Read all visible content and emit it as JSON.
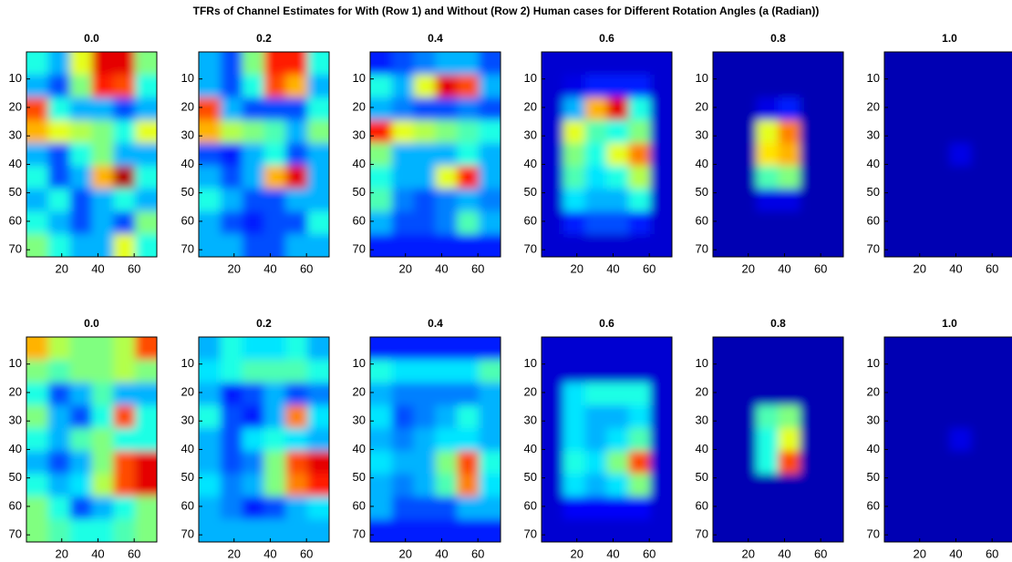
{
  "title": "TFRs of Channel Estimates for With (Row 1) and Without (Row 2) Human cases for Different Rotation Angles (a (Radian))",
  "chart_data": [
    {
      "type": "heatmap",
      "title": "0.0",
      "colormap": "jet",
      "clim": [
        0,
        1
      ],
      "xlim": [
        0.5,
        72.5
      ],
      "ylim": [
        72.5,
        0.5
      ],
      "xticks": [
        20,
        40,
        60
      ],
      "yticks": [
        10,
        20,
        30,
        40,
        50,
        60,
        70
      ],
      "z": [
        [
          0.4,
          0.3,
          0.6,
          0.9,
          0.9,
          0.5
        ],
        [
          0.3,
          0.2,
          0.5,
          0.85,
          0.8,
          0.4
        ],
        [
          0.8,
          0.4,
          0.3,
          0.3,
          0.2,
          0.3
        ],
        [
          0.7,
          0.6,
          0.55,
          0.5,
          0.4,
          0.6
        ],
        [
          0.3,
          0.2,
          0.4,
          0.5,
          0.3,
          0.3
        ],
        [
          0.4,
          0.2,
          0.3,
          0.7,
          0.95,
          0.4
        ],
        [
          0.3,
          0.4,
          0.2,
          0.3,
          0.4,
          0.3
        ],
        [
          0.4,
          0.3,
          0.2,
          0.3,
          0.2,
          0.5
        ],
        [
          0.5,
          0.4,
          0.3,
          0.3,
          0.6,
          0.4
        ]
      ]
    },
    {
      "type": "heatmap",
      "title": "0.2",
      "colormap": "jet",
      "clim": [
        0,
        1
      ],
      "xlim": [
        0.5,
        72.5
      ],
      "ylim": [
        72.5,
        0.5
      ],
      "xticks": [
        20,
        40,
        60
      ],
      "yticks": [
        10,
        20,
        30,
        40,
        50,
        60,
        70
      ],
      "z": [
        [
          0.3,
          0.2,
          0.5,
          0.85,
          0.85,
          0.4
        ],
        [
          0.3,
          0.2,
          0.4,
          0.8,
          0.7,
          0.3
        ],
        [
          0.8,
          0.3,
          0.2,
          0.2,
          0.2,
          0.4
        ],
        [
          0.7,
          0.55,
          0.5,
          0.45,
          0.3,
          0.5
        ],
        [
          0.2,
          0.15,
          0.3,
          0.4,
          0.2,
          0.3
        ],
        [
          0.3,
          0.2,
          0.3,
          0.7,
          0.9,
          0.3
        ],
        [
          0.4,
          0.3,
          0.2,
          0.2,
          0.3,
          0.3
        ],
        [
          0.3,
          0.2,
          0.15,
          0.2,
          0.2,
          0.4
        ],
        [
          0.3,
          0.3,
          0.2,
          0.2,
          0.3,
          0.3
        ]
      ]
    },
    {
      "type": "heatmap",
      "title": "0.4",
      "colormap": "jet",
      "clim": [
        0,
        1
      ],
      "xlim": [
        0.5,
        72.5
      ],
      "ylim": [
        72.5,
        0.5
      ],
      "xticks": [
        20,
        40,
        60
      ],
      "yticks": [
        10,
        20,
        30,
        40,
        50,
        60,
        70
      ],
      "z": [
        [
          0.15,
          0.2,
          0.25,
          0.3,
          0.3,
          0.2
        ],
        [
          0.4,
          0.3,
          0.6,
          0.9,
          0.8,
          0.3
        ],
        [
          0.3,
          0.25,
          0.2,
          0.2,
          0.25,
          0.2
        ],
        [
          0.85,
          0.6,
          0.55,
          0.5,
          0.45,
          0.4
        ],
        [
          0.5,
          0.3,
          0.3,
          0.3,
          0.4,
          0.3
        ],
        [
          0.4,
          0.3,
          0.3,
          0.6,
          0.85,
          0.3
        ],
        [
          0.45,
          0.25,
          0.2,
          0.25,
          0.3,
          0.25
        ],
        [
          0.3,
          0.2,
          0.2,
          0.25,
          0.45,
          0.3
        ],
        [
          0.15,
          0.15,
          0.15,
          0.15,
          0.15,
          0.15
        ]
      ]
    },
    {
      "type": "heatmap",
      "title": "0.6",
      "colormap": "jet",
      "clim": [
        0,
        1
      ],
      "xlim": [
        0.5,
        72.5
      ],
      "ylim": [
        72.5,
        0.5
      ],
      "xticks": [
        20,
        40,
        60
      ],
      "yticks": [
        10,
        20,
        30,
        40,
        50,
        60,
        70
      ],
      "z": [
        [
          0.08,
          0.08,
          0.08,
          0.08,
          0.08,
          0.08
        ],
        [
          0.08,
          0.1,
          0.15,
          0.15,
          0.15,
          0.08
        ],
        [
          0.08,
          0.3,
          0.7,
          0.9,
          0.4,
          0.08
        ],
        [
          0.08,
          0.6,
          0.45,
          0.4,
          0.5,
          0.08
        ],
        [
          0.08,
          0.5,
          0.4,
          0.6,
          0.75,
          0.08
        ],
        [
          0.08,
          0.45,
          0.35,
          0.4,
          0.55,
          0.08
        ],
        [
          0.08,
          0.35,
          0.3,
          0.3,
          0.4,
          0.08
        ],
        [
          0.08,
          0.15,
          0.2,
          0.2,
          0.15,
          0.08
        ],
        [
          0.08,
          0.08,
          0.08,
          0.08,
          0.08,
          0.08
        ]
      ]
    },
    {
      "type": "heatmap",
      "title": "0.8",
      "colormap": "jet",
      "clim": [
        0,
        1
      ],
      "xlim": [
        0.5,
        72.5
      ],
      "ylim": [
        72.5,
        0.5
      ],
      "xticks": [
        20,
        40,
        60
      ],
      "yticks": [
        10,
        20,
        30,
        40,
        50,
        60,
        70
      ],
      "z": [
        [
          0.05,
          0.05,
          0.05,
          0.05,
          0.05,
          0.05
        ],
        [
          0.05,
          0.05,
          0.05,
          0.05,
          0.05,
          0.05
        ],
        [
          0.05,
          0.05,
          0.1,
          0.15,
          0.05,
          0.05
        ],
        [
          0.05,
          0.05,
          0.6,
          0.75,
          0.05,
          0.05
        ],
        [
          0.05,
          0.05,
          0.65,
          0.7,
          0.05,
          0.05
        ],
        [
          0.05,
          0.05,
          0.45,
          0.5,
          0.05,
          0.05
        ],
        [
          0.05,
          0.05,
          0.1,
          0.1,
          0.05,
          0.05
        ],
        [
          0.05,
          0.05,
          0.05,
          0.05,
          0.05,
          0.05
        ],
        [
          0.05,
          0.05,
          0.05,
          0.05,
          0.05,
          0.05
        ]
      ]
    },
    {
      "type": "heatmap",
      "title": "1.0",
      "colormap": "jet",
      "clim": [
        0,
        1
      ],
      "xlim": [
        0.5,
        72.5
      ],
      "ylim": [
        72.5,
        0.5
      ],
      "xticks": [
        20,
        40,
        60
      ],
      "yticks": [
        10,
        20,
        30,
        40,
        50,
        60,
        70
      ],
      "z": [
        [
          0.05,
          0.05,
          0.05,
          0.05,
          0.05,
          0.05
        ],
        [
          0.05,
          0.05,
          0.05,
          0.05,
          0.05,
          0.05
        ],
        [
          0.05,
          0.05,
          0.05,
          0.05,
          0.05,
          0.05
        ],
        [
          0.05,
          0.05,
          0.05,
          0.05,
          0.05,
          0.05
        ],
        [
          0.05,
          0.05,
          0.05,
          0.1,
          0.05,
          0.05
        ],
        [
          0.05,
          0.05,
          0.05,
          0.05,
          0.05,
          0.05
        ],
        [
          0.05,
          0.05,
          0.05,
          0.05,
          0.05,
          0.05
        ],
        [
          0.05,
          0.05,
          0.05,
          0.05,
          0.05,
          0.05
        ],
        [
          0.05,
          0.05,
          0.05,
          0.05,
          0.05,
          0.05
        ]
      ]
    },
    {
      "type": "heatmap",
      "title": "0.0",
      "colormap": "jet",
      "clim": [
        0,
        1
      ],
      "xlim": [
        0.5,
        72.5
      ],
      "ylim": [
        72.5,
        0.5
      ],
      "xticks": [
        20,
        40,
        60
      ],
      "yticks": [
        10,
        20,
        30,
        40,
        50,
        60,
        70
      ],
      "z": [
        [
          0.7,
          0.55,
          0.5,
          0.5,
          0.55,
          0.8
        ],
        [
          0.5,
          0.45,
          0.5,
          0.5,
          0.55,
          0.5
        ],
        [
          0.4,
          0.2,
          0.3,
          0.45,
          0.3,
          0.3
        ],
        [
          0.5,
          0.3,
          0.2,
          0.4,
          0.8,
          0.4
        ],
        [
          0.4,
          0.3,
          0.45,
          0.5,
          0.4,
          0.4
        ],
        [
          0.3,
          0.2,
          0.3,
          0.5,
          0.8,
          0.9
        ],
        [
          0.4,
          0.3,
          0.35,
          0.55,
          0.8,
          0.9
        ],
        [
          0.5,
          0.4,
          0.2,
          0.3,
          0.4,
          0.5
        ],
        [
          0.5,
          0.45,
          0.4,
          0.4,
          0.45,
          0.5
        ]
      ]
    },
    {
      "type": "heatmap",
      "title": "0.2",
      "colormap": "jet",
      "clim": [
        0,
        1
      ],
      "xlim": [
        0.5,
        72.5
      ],
      "ylim": [
        72.5,
        0.5
      ],
      "xticks": [
        20,
        40,
        60
      ],
      "yticks": [
        10,
        20,
        30,
        40,
        50,
        60,
        70
      ],
      "z": [
        [
          0.3,
          0.4,
          0.35,
          0.35,
          0.4,
          0.3
        ],
        [
          0.35,
          0.4,
          0.45,
          0.45,
          0.45,
          0.4
        ],
        [
          0.3,
          0.15,
          0.2,
          0.3,
          0.2,
          0.25
        ],
        [
          0.4,
          0.2,
          0.15,
          0.3,
          0.75,
          0.35
        ],
        [
          0.3,
          0.2,
          0.35,
          0.4,
          0.35,
          0.3
        ],
        [
          0.3,
          0.2,
          0.25,
          0.5,
          0.8,
          0.9
        ],
        [
          0.35,
          0.25,
          0.3,
          0.5,
          0.75,
          0.85
        ],
        [
          0.3,
          0.25,
          0.15,
          0.2,
          0.3,
          0.35
        ],
        [
          0.3,
          0.3,
          0.3,
          0.3,
          0.3,
          0.3
        ]
      ]
    },
    {
      "type": "heatmap",
      "title": "0.4",
      "colormap": "jet",
      "clim": [
        0,
        1
      ],
      "xlim": [
        0.5,
        72.5
      ],
      "ylim": [
        72.5,
        0.5
      ],
      "xticks": [
        20,
        40,
        60
      ],
      "yticks": [
        10,
        20,
        30,
        40,
        50,
        60,
        70
      ],
      "z": [
        [
          0.15,
          0.15,
          0.15,
          0.15,
          0.15,
          0.15
        ],
        [
          0.4,
          0.35,
          0.35,
          0.35,
          0.35,
          0.45
        ],
        [
          0.3,
          0.25,
          0.25,
          0.25,
          0.25,
          0.3
        ],
        [
          0.35,
          0.2,
          0.25,
          0.3,
          0.4,
          0.3
        ],
        [
          0.3,
          0.25,
          0.3,
          0.35,
          0.35,
          0.3
        ],
        [
          0.35,
          0.3,
          0.3,
          0.5,
          0.8,
          0.4
        ],
        [
          0.3,
          0.25,
          0.3,
          0.45,
          0.75,
          0.35
        ],
        [
          0.3,
          0.2,
          0.2,
          0.2,
          0.3,
          0.3
        ],
        [
          0.15,
          0.15,
          0.15,
          0.15,
          0.15,
          0.15
        ]
      ]
    },
    {
      "type": "heatmap",
      "title": "0.6",
      "colormap": "jet",
      "clim": [
        0,
        1
      ],
      "xlim": [
        0.5,
        72.5
      ],
      "ylim": [
        72.5,
        0.5
      ],
      "xticks": [
        20,
        40,
        60
      ],
      "yticks": [
        10,
        20,
        30,
        40,
        50,
        60,
        70
      ],
      "z": [
        [
          0.08,
          0.08,
          0.08,
          0.08,
          0.08,
          0.08
        ],
        [
          0.08,
          0.08,
          0.08,
          0.08,
          0.08,
          0.08
        ],
        [
          0.08,
          0.35,
          0.4,
          0.4,
          0.4,
          0.08
        ],
        [
          0.08,
          0.35,
          0.3,
          0.3,
          0.35,
          0.08
        ],
        [
          0.08,
          0.35,
          0.3,
          0.35,
          0.45,
          0.08
        ],
        [
          0.08,
          0.4,
          0.35,
          0.5,
          0.8,
          0.08
        ],
        [
          0.08,
          0.35,
          0.3,
          0.35,
          0.5,
          0.08
        ],
        [
          0.08,
          0.12,
          0.12,
          0.12,
          0.12,
          0.08
        ],
        [
          0.08,
          0.08,
          0.08,
          0.08,
          0.08,
          0.08
        ]
      ]
    },
    {
      "type": "heatmap",
      "title": "0.8",
      "colormap": "jet",
      "clim": [
        0,
        1
      ],
      "xlim": [
        0.5,
        72.5
      ],
      "ylim": [
        72.5,
        0.5
      ],
      "xticks": [
        20,
        40,
        60
      ],
      "yticks": [
        10,
        20,
        30,
        40,
        50,
        60,
        70
      ],
      "z": [
        [
          0.05,
          0.05,
          0.05,
          0.05,
          0.05,
          0.05
        ],
        [
          0.05,
          0.05,
          0.05,
          0.05,
          0.05,
          0.05
        ],
        [
          0.05,
          0.05,
          0.05,
          0.05,
          0.05,
          0.05
        ],
        [
          0.05,
          0.05,
          0.45,
          0.5,
          0.05,
          0.05
        ],
        [
          0.05,
          0.05,
          0.4,
          0.6,
          0.05,
          0.05
        ],
        [
          0.05,
          0.05,
          0.4,
          0.8,
          0.05,
          0.05
        ],
        [
          0.05,
          0.05,
          0.05,
          0.05,
          0.05,
          0.05
        ],
        [
          0.05,
          0.05,
          0.05,
          0.05,
          0.05,
          0.05
        ],
        [
          0.05,
          0.05,
          0.05,
          0.05,
          0.05,
          0.05
        ]
      ]
    },
    {
      "type": "heatmap",
      "title": "1.0",
      "colormap": "jet",
      "clim": [
        0,
        1
      ],
      "xlim": [
        0.5,
        72.5
      ],
      "ylim": [
        72.5,
        0.5
      ],
      "xticks": [
        20,
        40,
        60
      ],
      "yticks": [
        10,
        20,
        30,
        40,
        50,
        60,
        70
      ],
      "z": [
        [
          0.05,
          0.05,
          0.05,
          0.05,
          0.05,
          0.05
        ],
        [
          0.05,
          0.05,
          0.05,
          0.05,
          0.05,
          0.05
        ],
        [
          0.05,
          0.05,
          0.05,
          0.05,
          0.05,
          0.05
        ],
        [
          0.05,
          0.05,
          0.05,
          0.05,
          0.05,
          0.05
        ],
        [
          0.05,
          0.05,
          0.05,
          0.1,
          0.05,
          0.05
        ],
        [
          0.05,
          0.05,
          0.05,
          0.05,
          0.05,
          0.05
        ],
        [
          0.05,
          0.05,
          0.05,
          0.05,
          0.05,
          0.05
        ],
        [
          0.05,
          0.05,
          0.05,
          0.05,
          0.05,
          0.05
        ],
        [
          0.05,
          0.05,
          0.05,
          0.05,
          0.05,
          0.05
        ]
      ]
    }
  ]
}
